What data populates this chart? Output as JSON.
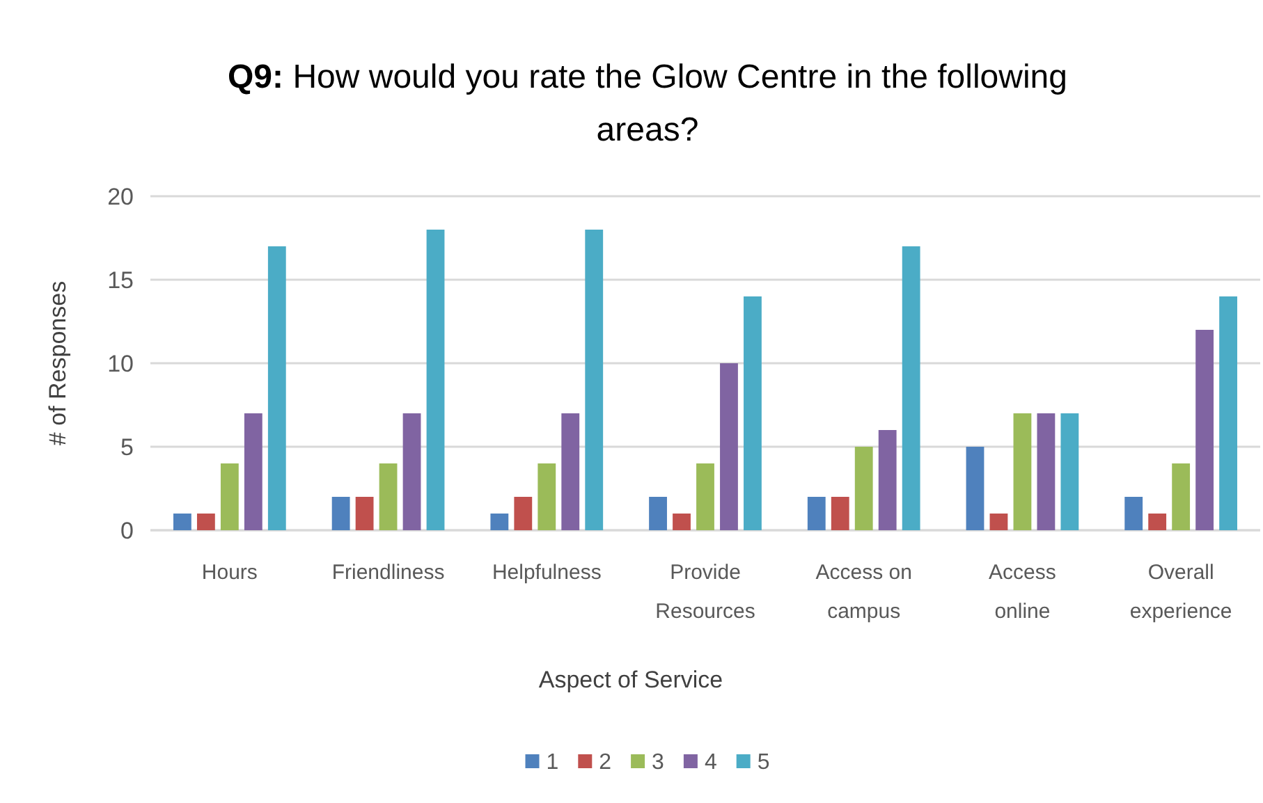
{
  "chart_data": {
    "type": "bar",
    "title": "Q9: How would you rate the Glow Centre in the following areas?",
    "xlabel": "Aspect of Service",
    "ylabel": "# of Responses",
    "categories": [
      "Hours",
      "Friendliness",
      "Helpfulness",
      "Provide Resources",
      "Access on campus",
      "Access online",
      "Overall experience"
    ],
    "series": [
      {
        "name": "1",
        "color": "#4f81bd",
        "values": [
          1,
          2,
          1,
          2,
          2,
          5,
          2
        ]
      },
      {
        "name": "2",
        "color": "#c0504d",
        "values": [
          1,
          2,
          2,
          1,
          2,
          1,
          1
        ]
      },
      {
        "name": "3",
        "color": "#9bbb59",
        "values": [
          4,
          4,
          4,
          4,
          5,
          7,
          4
        ]
      },
      {
        "name": "4",
        "color": "#8064a2",
        "values": [
          7,
          7,
          7,
          10,
          6,
          7,
          12
        ]
      },
      {
        "name": "5",
        "color": "#4bacc6",
        "values": [
          17,
          18,
          18,
          14,
          17,
          7,
          14
        ]
      }
    ],
    "ylim": [
      0,
      20
    ],
    "yticks": [
      0,
      5,
      10,
      15,
      20
    ],
    "grid": "y",
    "legend": "bottom"
  }
}
